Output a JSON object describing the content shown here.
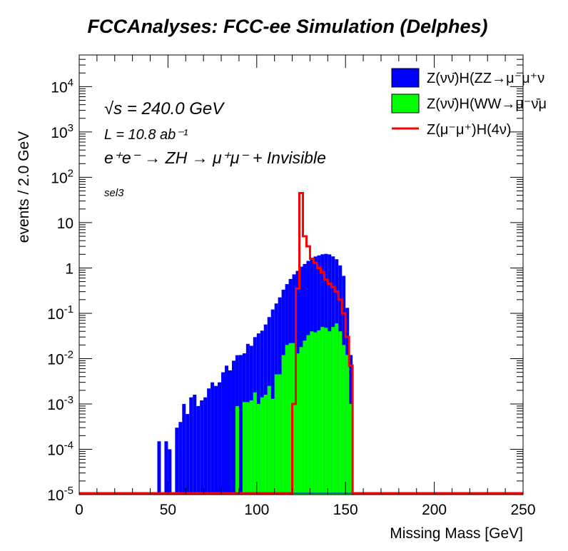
{
  "page": {
    "title": "FCCAnalyses: FCC-ee Simulation (Delphes)"
  },
  "annotations": {
    "sqrt_s": "√s = 240.0 GeV",
    "lumi": "L = 10.8 ab⁻¹",
    "process": "e⁺e⁻ → ZH → μ⁺μ⁻ + Invisible",
    "selection": "sel3"
  },
  "legend": [
    {
      "label": "Z(νν̄)H(ZZ→μ⁻μ⁺ν",
      "color": "#0000ff",
      "kind": "fill"
    },
    {
      "label": "Z(νν̄)H(WW→μ⁻ν̄μ",
      "color": "#00ff00",
      "kind": "fill"
    },
    {
      "label": "Z(μ⁻μ⁺)H(4ν)",
      "color": "#ff0000",
      "kind": "line"
    }
  ],
  "colors": {
    "zz": "#0000ff",
    "ww": "#00ff00",
    "signal": "#ff0000",
    "axis": "#000000"
  },
  "chart_data": {
    "type": "histogram",
    "title": "FCCAnalyses: FCC-ee Simulation (Delphes)",
    "xlabel": "Missing Mass [GeV]",
    "ylabel": "events / 2.0 GeV",
    "xlim": [
      0,
      250
    ],
    "ylim": [
      1e-05,
      50000
    ],
    "yscale": "log",
    "bin_width": 2.0,
    "stacked": true,
    "x_ticks": [
      0,
      50,
      100,
      150,
      200,
      250
    ],
    "x_tick_labels": [
      "0",
      "50",
      "100",
      "150",
      "200",
      "250"
    ],
    "y_ticks": [
      1e-05,
      0.0001,
      0.001,
      0.01,
      0.1,
      1,
      10,
      100,
      1000,
      10000
    ],
    "y_tick_labels": [
      {
        "base": "10",
        "exp": "-5"
      },
      {
        "base": "10",
        "exp": "-4"
      },
      {
        "base": "10",
        "exp": "-3"
      },
      {
        "base": "10",
        "exp": "-2"
      },
      {
        "base": "10",
        "exp": "-1"
      },
      {
        "base": "1",
        "exp": ""
      },
      {
        "base": "10",
        "exp": ""
      },
      {
        "base": "10",
        "exp": "2"
      },
      {
        "base": "10",
        "exp": "3"
      },
      {
        "base": "10",
        "exp": "4"
      }
    ],
    "series": [
      {
        "name": "Z(νν̄)H(ZZ→μ⁻μ⁺ν",
        "style": "fill",
        "bins": [
          [
            44,
            0.00015
          ],
          [
            48,
            0.00015
          ],
          [
            50,
            0.0001
          ],
          [
            54,
            0.0003
          ],
          [
            56,
            0.0004
          ],
          [
            58,
            0.001
          ],
          [
            60,
            0.0006
          ],
          [
            62,
            0.0014
          ],
          [
            64,
            0.0016
          ],
          [
            66,
            0.0009
          ],
          [
            68,
            0.0012
          ],
          [
            70,
            0.0014
          ],
          [
            72,
            0.0022
          ],
          [
            74,
            0.003
          ],
          [
            76,
            0.0025
          ],
          [
            78,
            0.003
          ],
          [
            80,
            0.005
          ],
          [
            82,
            0.007
          ],
          [
            84,
            0.0055
          ],
          [
            86,
            0.009
          ],
          [
            88,
            0.011
          ],
          [
            90,
            0.012
          ],
          [
            92,
            0.012
          ],
          [
            94,
            0.02
          ],
          [
            96,
            0.018
          ],
          [
            98,
            0.028
          ],
          [
            100,
            0.035
          ],
          [
            102,
            0.04
          ],
          [
            104,
            0.055
          ],
          [
            106,
            0.08
          ],
          [
            108,
            0.12
          ],
          [
            110,
            0.16
          ],
          [
            112,
            0.22
          ],
          [
            114,
            0.32
          ],
          [
            116,
            0.42
          ],
          [
            118,
            0.55
          ],
          [
            120,
            0.7
          ],
          [
            122,
            0.85
          ],
          [
            124,
            1.05
          ],
          [
            126,
            1.2
          ],
          [
            128,
            1.4
          ],
          [
            130,
            1.6
          ],
          [
            132,
            1.75
          ],
          [
            134,
            1.85
          ],
          [
            136,
            1.95
          ],
          [
            138,
            2.0
          ],
          [
            140,
            1.95
          ],
          [
            142,
            1.75
          ],
          [
            144,
            1.5
          ],
          [
            146,
            1.1
          ],
          [
            148,
            0.65
          ],
          [
            150,
            0.12
          ],
          [
            152,
            0.011
          ]
        ]
      },
      {
        "name": "Z(νν̄)H(WW→μ⁻ν̄μ",
        "style": "fill",
        "bins": [
          [
            88,
            0.0009
          ],
          [
            92,
            0.0011
          ],
          [
            94,
            0.0011
          ],
          [
            96,
            0.0012
          ],
          [
            98,
            0.0018
          ],
          [
            100,
            0.001
          ],
          [
            102,
            0.0014
          ],
          [
            104,
            0.0016
          ],
          [
            106,
            0.0025
          ],
          [
            108,
            0.0013
          ],
          [
            110,
            0.0045
          ],
          [
            112,
            0.0045
          ],
          [
            114,
            0.012
          ],
          [
            116,
            0.02
          ],
          [
            118,
            0.022
          ],
          [
            120,
            0.022
          ],
          [
            122,
            0.013
          ],
          [
            124,
            0.018
          ],
          [
            126,
            0.025
          ],
          [
            128,
            0.033
          ],
          [
            130,
            0.04
          ],
          [
            132,
            0.038
          ],
          [
            134,
            0.042
          ],
          [
            136,
            0.05
          ],
          [
            138,
            0.048
          ],
          [
            140,
            0.04
          ],
          [
            142,
            0.05
          ],
          [
            144,
            0.06
          ],
          [
            146,
            0.04
          ],
          [
            148,
            0.02
          ],
          [
            150,
            0.012
          ],
          [
            152,
            0.001
          ]
        ]
      },
      {
        "name": "Z(μ⁻μ⁺)H(4ν)",
        "style": "line",
        "bins": [
          [
            120,
            0.001
          ],
          [
            122,
            0.35
          ],
          [
            124,
            45
          ],
          [
            126,
            5
          ],
          [
            128,
            3
          ],
          [
            130,
            1.6
          ],
          [
            132,
            1.3
          ],
          [
            134,
            1.0
          ],
          [
            136,
            0.8
          ],
          [
            138,
            0.55
          ],
          [
            140,
            0.45
          ],
          [
            142,
            0.38
          ],
          [
            144,
            0.3
          ],
          [
            146,
            0.2
          ],
          [
            148,
            0.1
          ],
          [
            150,
            0.03
          ],
          [
            152,
            0.007
          ]
        ]
      }
    ]
  }
}
